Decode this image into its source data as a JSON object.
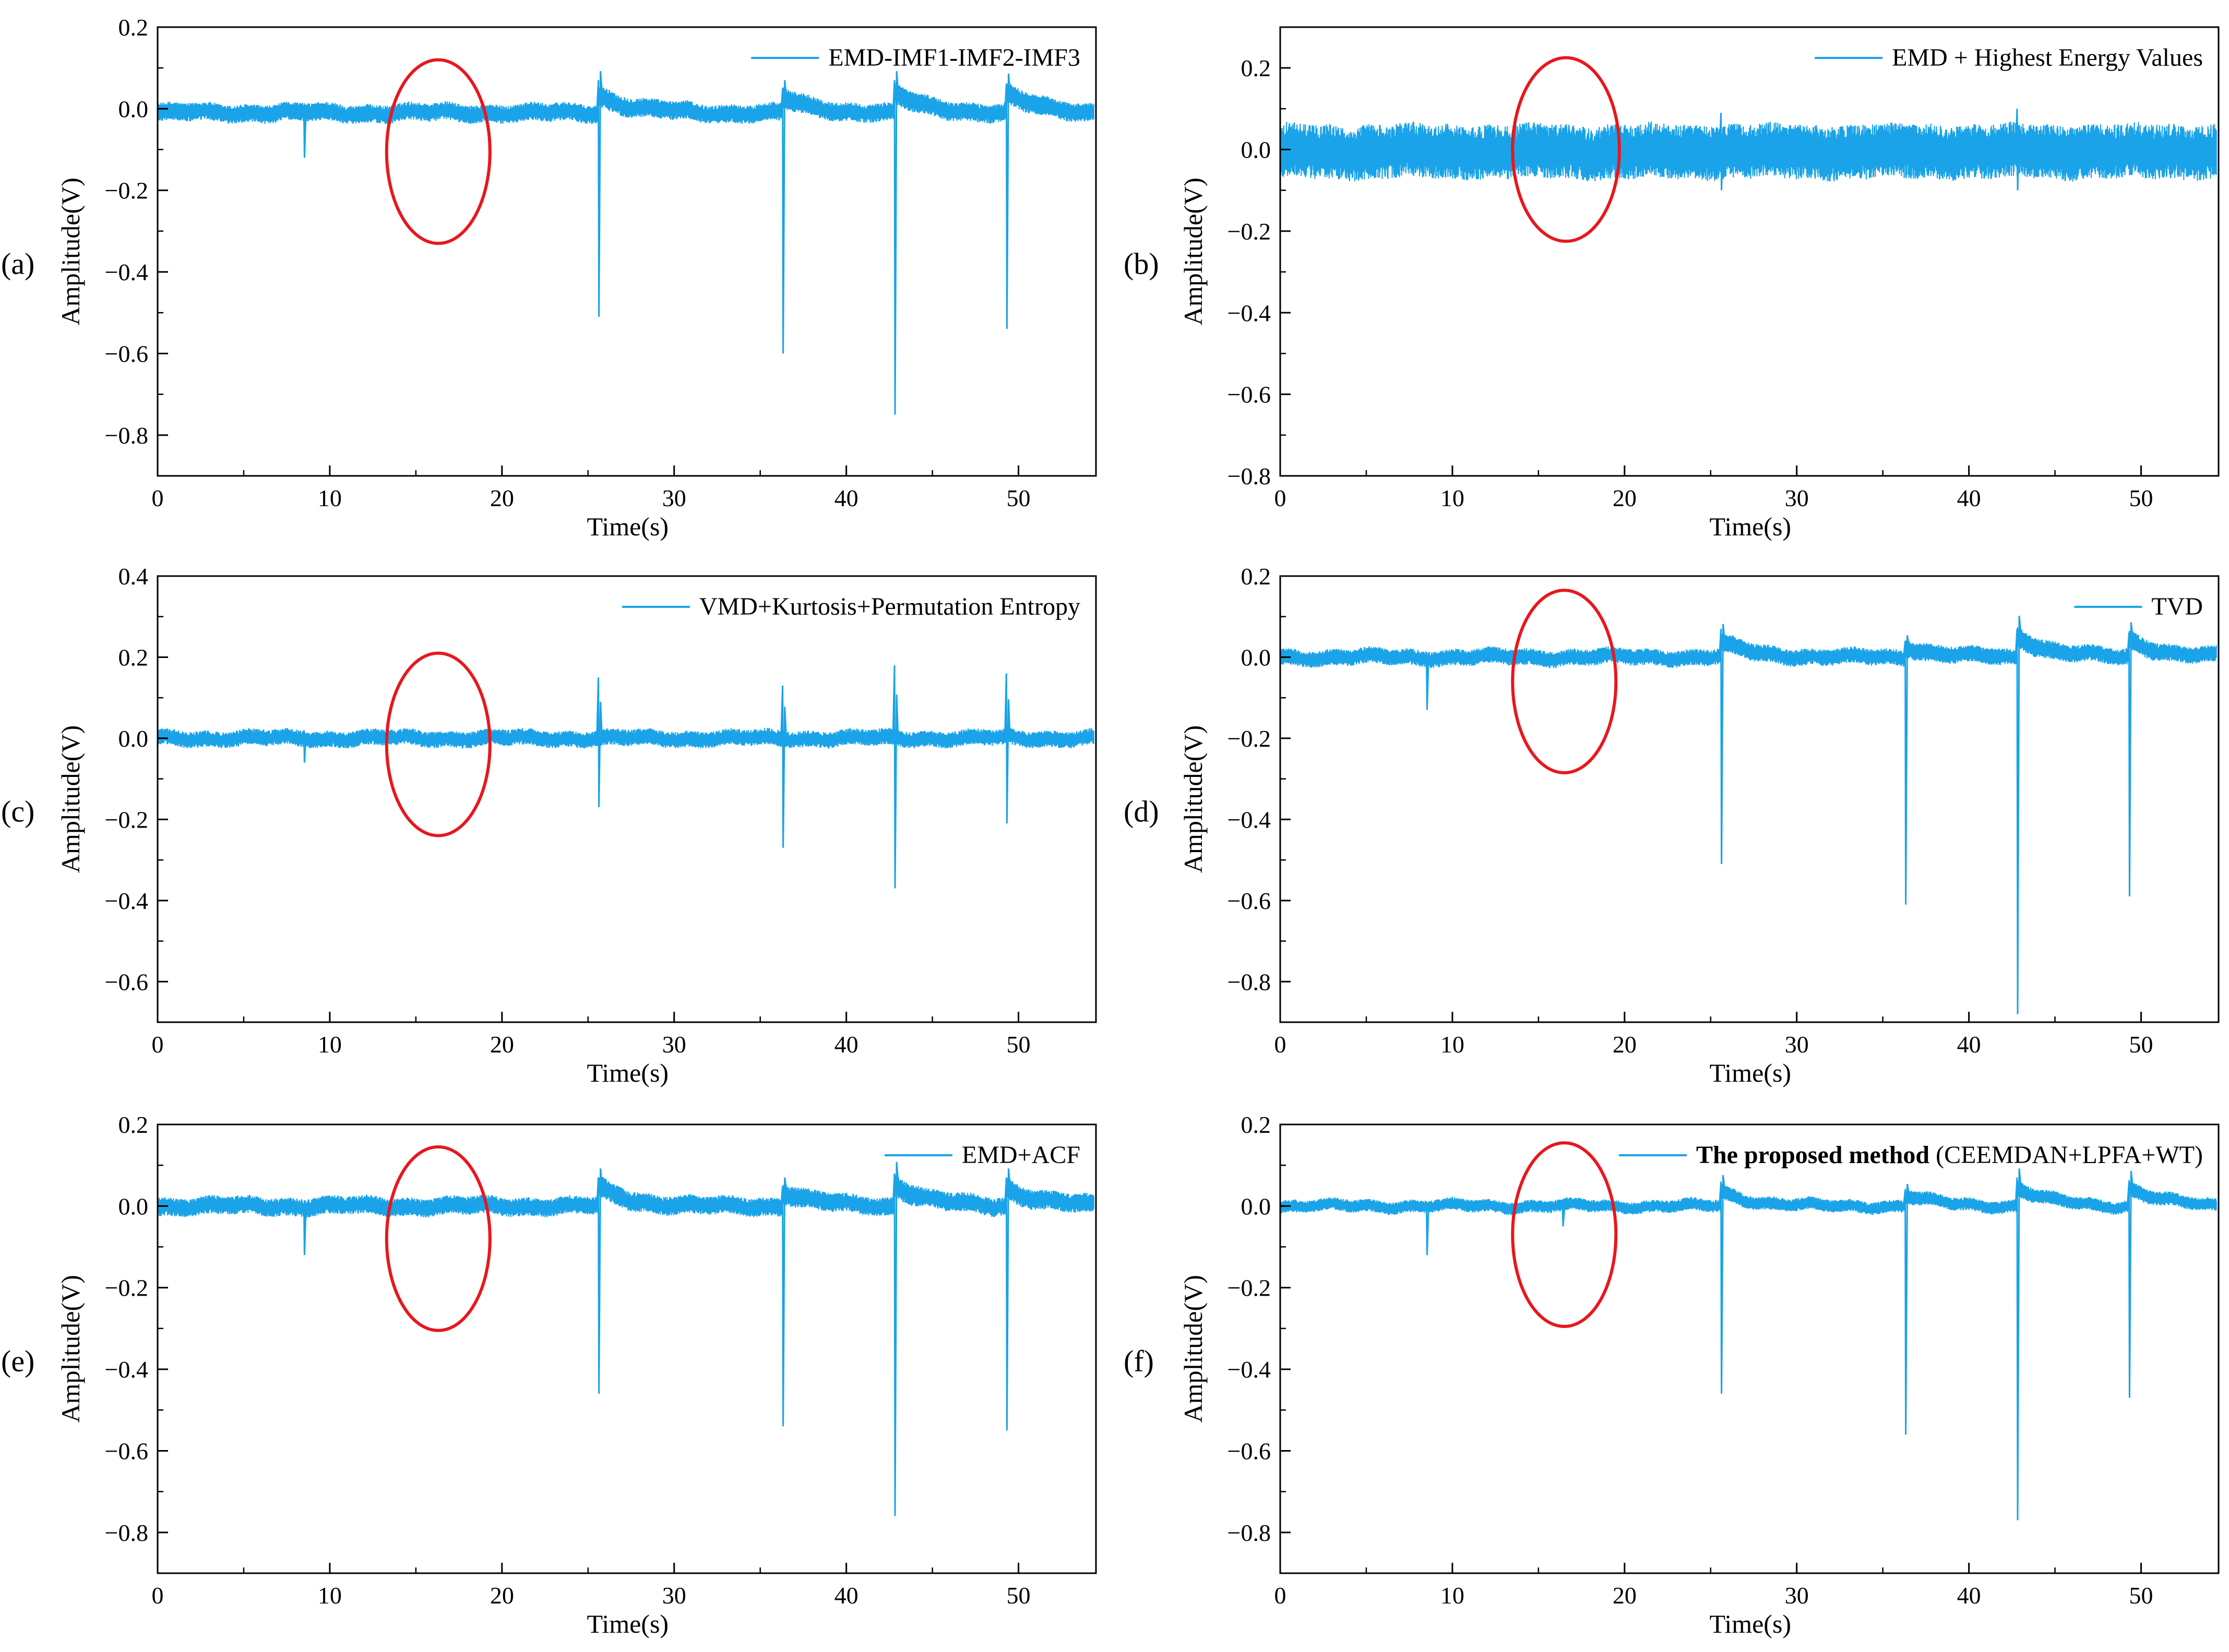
{
  "figure_title": "",
  "colors": {
    "signal": "#1aa3e8",
    "annotation": "#e8171c",
    "axis": "#000000",
    "background": "#ffffff"
  },
  "chart_data": [
    {
      "panel": "(a)",
      "type": "line",
      "title": "",
      "legend": {
        "label": "EMD-IMF1-IMF2-IMF3",
        "bold_prefix": "",
        "position": "top-right"
      },
      "xlabel": "Time(s)",
      "ylabel": "Amplitude(V)",
      "xlim": [
        0,
        54.5
      ],
      "ylim": [
        -0.9,
        0.2
      ],
      "xticks": [
        0,
        10,
        20,
        30,
        40,
        50
      ],
      "xtick_labels": [
        "0",
        "10",
        "20",
        "30",
        "40",
        "50"
      ],
      "yticks": [
        0.2,
        0.0,
        -0.2,
        -0.4,
        -0.6,
        -0.8
      ],
      "ytick_labels": [
        "0.2",
        "0.0",
        "−0.2",
        "−0.4",
        "−0.6",
        "−0.8"
      ],
      "baseline": -0.01,
      "noise_amplitude": 0.018,
      "spikes": [
        {
          "t": 8.5,
          "min": -0.12,
          "max": 0.0,
          "recovery": 0.0
        },
        {
          "t": 25.6,
          "min": -0.51,
          "max": 0.07,
          "recovery": 0.05
        },
        {
          "t": 36.3,
          "min": -0.6,
          "max": 0.05,
          "recovery": 0.04
        },
        {
          "t": 42.8,
          "min": -0.75,
          "max": 0.07,
          "recovery": 0.05
        },
        {
          "t": 49.3,
          "min": -0.54,
          "max": 0.06,
          "recovery": 0.05
        }
      ],
      "annotation": {
        "shape": "ellipse",
        "center": [
          16.3,
          -0.105
        ],
        "radius": [
          3.0,
          0.225
        ]
      }
    },
    {
      "panel": "(b)",
      "type": "line",
      "title": "",
      "legend": {
        "label": "EMD + Highest Energy Values",
        "bold_prefix": "",
        "position": "top-right"
      },
      "xlabel": "Time(s)",
      "ylabel": "Amplitude(V)",
      "xlim": [
        0,
        54.5
      ],
      "ylim": [
        -0.8,
        0.3
      ],
      "xticks": [
        0,
        10,
        20,
        30,
        40,
        50
      ],
      "xtick_labels": [
        "0",
        "10",
        "20",
        "30",
        "40",
        "50"
      ],
      "yticks": [
        0.2,
        0.0,
        -0.2,
        -0.4,
        -0.6,
        -0.8
      ],
      "ytick_labels": [
        "0.2",
        "0.0",
        "−0.2",
        "−0.4",
        "−0.6",
        "−0.8"
      ],
      "baseline": -0.005,
      "noise_amplitude": 0.055,
      "spikes": [
        {
          "t": 25.6,
          "min": -0.1,
          "max": 0.09,
          "recovery": 0.0
        },
        {
          "t": 42.8,
          "min": -0.1,
          "max": 0.1,
          "recovery": 0.0
        }
      ],
      "annotation": {
        "shape": "ellipse",
        "center": [
          16.6,
          0.0
        ],
        "radius": [
          3.1,
          0.225
        ]
      }
    },
    {
      "panel": "(c)",
      "type": "line",
      "title": "",
      "legend": {
        "label": "VMD+Kurtosis+Permutation Entropy",
        "bold_prefix": "",
        "position": "top-right"
      },
      "xlabel": "Time(s)",
      "ylabel": "Amplitude(V)",
      "xlim": [
        0,
        54.5
      ],
      "ylim": [
        -0.7,
        0.4
      ],
      "xticks": [
        0,
        10,
        20,
        30,
        40,
        50
      ],
      "xtick_labels": [
        "0",
        "10",
        "20",
        "30",
        "40",
        "50"
      ],
      "yticks": [
        0.4,
        0.2,
        0.0,
        -0.2,
        -0.4,
        -0.6
      ],
      "ytick_labels": [
        "0.4",
        "0.2",
        "0.0",
        "−0.2",
        "−0.4",
        "−0.6"
      ],
      "baseline": 0.0,
      "noise_amplitude": 0.016,
      "spikes": [
        {
          "t": 8.5,
          "min": -0.06,
          "max": 0.02,
          "recovery": 0.0
        },
        {
          "t": 25.6,
          "min": -0.17,
          "max": 0.15,
          "recovery": 0.0
        },
        {
          "t": 36.3,
          "min": -0.27,
          "max": 0.13,
          "recovery": 0.0
        },
        {
          "t": 42.8,
          "min": -0.37,
          "max": 0.18,
          "recovery": 0.0
        },
        {
          "t": 49.3,
          "min": -0.21,
          "max": 0.16,
          "recovery": 0.0
        }
      ],
      "annotation": {
        "shape": "ellipse",
        "center": [
          16.3,
          -0.015
        ],
        "radius": [
          3.0,
          0.225
        ]
      }
    },
    {
      "panel": "(d)",
      "type": "line",
      "title": "",
      "legend": {
        "label": "TVD",
        "bold_prefix": "",
        "position": "top-right"
      },
      "xlabel": "Time(s)",
      "ylabel": "Amplitude(V)",
      "xlim": [
        0,
        54.5
      ],
      "ylim": [
        -0.9,
        0.2
      ],
      "xticks": [
        0,
        10,
        20,
        30,
        40,
        50
      ],
      "xtick_labels": [
        "0",
        "10",
        "20",
        "30",
        "40",
        "50"
      ],
      "yticks": [
        0.2,
        0.0,
        -0.2,
        -0.4,
        -0.6,
        -0.8
      ],
      "ytick_labels": [
        "0.2",
        "0.0",
        "−0.2",
        "−0.4",
        "−0.6",
        "−0.8"
      ],
      "baseline": 0.0,
      "noise_amplitude": 0.016,
      "spikes": [
        {
          "t": 8.5,
          "min": -0.13,
          "max": 0.0,
          "recovery": 0.0
        },
        {
          "t": 25.6,
          "min": -0.51,
          "max": 0.07,
          "recovery": 0.04
        },
        {
          "t": 36.3,
          "min": -0.61,
          "max": 0.04,
          "recovery": 0.03
        },
        {
          "t": 42.8,
          "min": -0.88,
          "max": 0.07,
          "recovery": 0.06
        },
        {
          "t": 49.3,
          "min": -0.59,
          "max": 0.06,
          "recovery": 0.05
        }
      ],
      "annotation": {
        "shape": "ellipse",
        "center": [
          16.5,
          -0.06
        ],
        "radius": [
          3.0,
          0.225
        ]
      }
    },
    {
      "panel": "(e)",
      "type": "line",
      "title": "",
      "legend": {
        "label": "EMD+ACF",
        "bold_prefix": "",
        "position": "top-right"
      },
      "xlabel": "Time(s)",
      "ylabel": "Amplitude(V)",
      "xlim": [
        0,
        54.5
      ],
      "ylim": [
        -0.9,
        0.2
      ],
      "xticks": [
        0,
        10,
        20,
        30,
        40,
        50
      ],
      "xtick_labels": [
        "0",
        "10",
        "20",
        "30",
        "40",
        "50"
      ],
      "yticks": [
        0.2,
        0.0,
        -0.2,
        -0.4,
        -0.6,
        -0.8
      ],
      "ytick_labels": [
        "0.2",
        "0.0",
        "−0.2",
        "−0.4",
        "−0.6",
        "−0.8"
      ],
      "baseline": 0.0,
      "noise_amplitude": 0.018,
      "spikes": [
        {
          "t": 8.5,
          "min": -0.12,
          "max": 0.0,
          "recovery": 0.0
        },
        {
          "t": 25.6,
          "min": -0.46,
          "max": 0.07,
          "recovery": 0.05
        },
        {
          "t": 36.3,
          "min": -0.54,
          "max": 0.05,
          "recovery": 0.04
        },
        {
          "t": 42.8,
          "min": -0.76,
          "max": 0.08,
          "recovery": 0.06
        },
        {
          "t": 49.3,
          "min": -0.55,
          "max": 0.07,
          "recovery": 0.05
        }
      ],
      "annotation": {
        "shape": "ellipse",
        "center": [
          16.3,
          -0.08
        ],
        "radius": [
          3.0,
          0.225
        ]
      }
    },
    {
      "panel": "(f)",
      "type": "line",
      "title": "",
      "legend": {
        "label": "(CEEMDAN+LPFA+WT)",
        "bold_prefix": "The proposed method",
        "position": "top-right"
      },
      "xlabel": "Time(s)",
      "ylabel": "Amplitude(V)",
      "xlim": [
        0,
        54.5
      ],
      "ylim": [
        -0.9,
        0.2
      ],
      "xticks": [
        0,
        10,
        20,
        30,
        40,
        50
      ],
      "xtick_labels": [
        "0",
        "10",
        "20",
        "30",
        "40",
        "50"
      ],
      "yticks": [
        0.2,
        0.0,
        -0.2,
        -0.4,
        -0.6,
        -0.8
      ],
      "ytick_labels": [
        "0.2",
        "0.0",
        "−0.2",
        "−0.4",
        "−0.6",
        "−0.8"
      ],
      "baseline": 0.0,
      "noise_amplitude": 0.012,
      "spikes": [
        {
          "t": 8.5,
          "min": -0.12,
          "max": 0.0,
          "recovery": 0.0
        },
        {
          "t": 16.4,
          "min": -0.05,
          "max": 0.0,
          "recovery": 0.0
        },
        {
          "t": 25.6,
          "min": -0.46,
          "max": 0.06,
          "recovery": 0.04
        },
        {
          "t": 36.3,
          "min": -0.56,
          "max": 0.04,
          "recovery": 0.03
        },
        {
          "t": 42.8,
          "min": -0.77,
          "max": 0.07,
          "recovery": 0.05
        },
        {
          "t": 49.3,
          "min": -0.47,
          "max": 0.06,
          "recovery": 0.05
        }
      ],
      "annotation": {
        "shape": "ellipse",
        "center": [
          16.5,
          -0.07
        ],
        "radius": [
          3.0,
          0.225
        ]
      }
    }
  ]
}
